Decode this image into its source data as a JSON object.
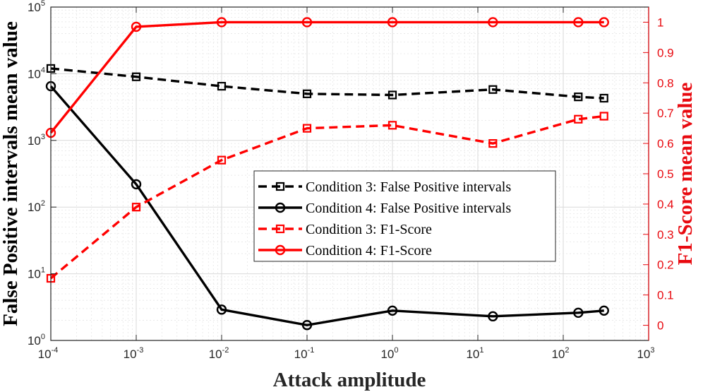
{
  "chart_data": {
    "type": "line",
    "xlabel": "Attack amplitude",
    "ylabel_left": "False Positive intervals mean value",
    "ylabel_right": "F1-Score mean value",
    "x_scale": "log",
    "xlim": [
      0.0001,
      1000
    ],
    "ylim_left": [
      1,
      100000
    ],
    "ylim_right": [
      -0.05,
      1.05
    ],
    "grid": true,
    "x_ticks": [
      {
        "base": "10",
        "exp": "-4"
      },
      {
        "base": "10",
        "exp": "-3"
      },
      {
        "base": "10",
        "exp": "-2"
      },
      {
        "base": "10",
        "exp": "-1"
      },
      {
        "base": "10",
        "exp": "0"
      },
      {
        "base": "10",
        "exp": "1"
      },
      {
        "base": "10",
        "exp": "2"
      },
      {
        "base": "10",
        "exp": "3"
      }
    ],
    "left_ticks": [
      {
        "base": "10",
        "exp": "0"
      },
      {
        "base": "10",
        "exp": "1"
      },
      {
        "base": "10",
        "exp": "2"
      },
      {
        "base": "10",
        "exp": "3"
      },
      {
        "base": "10",
        "exp": "4"
      },
      {
        "base": "10",
        "exp": "5"
      }
    ],
    "right_ticks": [
      "0",
      "0.1",
      "0.2",
      "0.3",
      "0.4",
      "0.5",
      "0.6",
      "0.7",
      "0.8",
      "0.9",
      "1"
    ],
    "legend_position": "center",
    "colors": {
      "left_axis": "#262626",
      "right_axis": "#e8090f",
      "black": "#000000",
      "red": "#ff0000"
    },
    "series": [
      {
        "name": "Condition 3: False Positive intervals",
        "axis": "left",
        "color": "#000000",
        "dash": true,
        "marker": "square",
        "x": [
          0.0001,
          0.001,
          0.01,
          0.1,
          1,
          15,
          150,
          300
        ],
        "y": [
          12000,
          9000,
          6500,
          5000,
          4800,
          5800,
          4500,
          4300
        ]
      },
      {
        "name": "Condition 4: False Positive intervals",
        "axis": "left",
        "color": "#000000",
        "dash": false,
        "marker": "circle",
        "x": [
          0.0001,
          0.001,
          0.01,
          0.1,
          1,
          15,
          150,
          300
        ],
        "y": [
          6500,
          220,
          2.9,
          1.7,
          2.8,
          2.3,
          2.6,
          2.8
        ]
      },
      {
        "name": "Condition 3: F1-Score",
        "axis": "right",
        "color": "#ff0000",
        "dash": true,
        "marker": "square",
        "x": [
          0.0001,
          0.001,
          0.01,
          0.1,
          1,
          15,
          150,
          300
        ],
        "y": [
          0.155,
          0.39,
          0.545,
          0.65,
          0.66,
          0.6,
          0.68,
          0.69
        ]
      },
      {
        "name": "Condition 4: F1-Score",
        "axis": "right",
        "color": "#ff0000",
        "dash": false,
        "marker": "circle",
        "x": [
          0.0001,
          0.001,
          0.01,
          0.1,
          1,
          15,
          150,
          300
        ],
        "y": [
          0.635,
          0.985,
          1.0,
          1.0,
          1.0,
          1.0,
          1.0,
          1.0
        ]
      }
    ]
  }
}
